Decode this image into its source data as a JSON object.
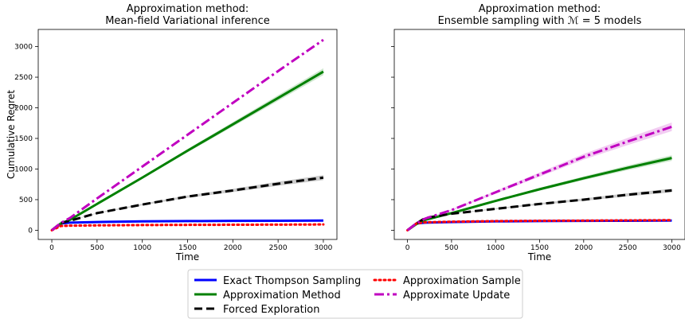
{
  "chart_data": [
    {
      "type": "line",
      "title": "Approximation method:\nMean-field Variational inference",
      "xlabel": "Time",
      "ylabel": "Cumulative Regret",
      "xlim": [
        -150,
        3150
      ],
      "ylim": [
        -150,
        3280
      ],
      "xticks": [
        0,
        500,
        1000,
        1500,
        2000,
        2500,
        3000
      ],
      "yticks": [
        0,
        500,
        1000,
        1500,
        2000,
        2500,
        3000
      ],
      "grid": false,
      "series": [
        {
          "name": "Exact Thompson Sampling",
          "color": "#0000ff",
          "style": "solid",
          "x": [
            0,
            100,
            200,
            500,
            1000,
            1500,
            2000,
            2500,
            3000
          ],
          "y": [
            0,
            110,
            125,
            135,
            145,
            150,
            153,
            156,
            158
          ]
        },
        {
          "name": "Approximation Method",
          "color": "#008000",
          "style": "solid",
          "x": [
            0,
            100,
            200,
            500,
            1000,
            1500,
            2000,
            2500,
            3000
          ],
          "y": [
            0,
            110,
            170,
            430,
            860,
            1300,
            1730,
            2160,
            2590
          ],
          "band": 55
        },
        {
          "name": "Forced Exploration",
          "color": "#000000",
          "style": "dashed",
          "x": [
            0,
            100,
            200,
            500,
            1000,
            1500,
            2000,
            2500,
            3000
          ],
          "y": [
            0,
            120,
            155,
            280,
            420,
            550,
            650,
            760,
            860
          ],
          "band": 40
        },
        {
          "name": "Approximation Sample",
          "color": "#ff0000",
          "style": "dotted",
          "x": [
            0,
            100,
            200,
            500,
            1000,
            1500,
            2000,
            2500,
            3000
          ],
          "y": [
            0,
            70,
            75,
            80,
            85,
            88,
            90,
            92,
            95
          ]
        },
        {
          "name": "Approximate Update",
          "color": "#c000c0",
          "style": "dashdot",
          "x": [
            0,
            100,
            200,
            500,
            1000,
            1500,
            2000,
            2500,
            3000
          ],
          "y": [
            0,
            120,
            200,
            520,
            1040,
            1560,
            2080,
            2600,
            3110
          ]
        }
      ]
    },
    {
      "type": "line",
      "title": "Approximation method:\nEnsemble sampling with ℳ = 5 models",
      "xlabel": "Time",
      "ylabel": "",
      "xlim": [
        -150,
        3150
      ],
      "ylim": [
        -150,
        3280
      ],
      "xticks": [
        0,
        500,
        1000,
        1500,
        2000,
        2500,
        3000
      ],
      "yticks": [],
      "grid": false,
      "series": [
        {
          "name": "Exact Thompson Sampling",
          "color": "#0000ff",
          "style": "solid",
          "x": [
            0,
            100,
            200,
            500,
            1000,
            1500,
            2000,
            2500,
            3000
          ],
          "y": [
            0,
            110,
            125,
            135,
            145,
            150,
            153,
            156,
            158
          ]
        },
        {
          "name": "Approximation Method",
          "color": "#008000",
          "style": "solid",
          "x": [
            0,
            100,
            200,
            500,
            1000,
            1500,
            2000,
            2500,
            3000
          ],
          "y": [
            0,
            100,
            170,
            280,
            480,
            670,
            850,
            1020,
            1180
          ],
          "band": 45
        },
        {
          "name": "Forced Exploration",
          "color": "#000000",
          "style": "dashed",
          "x": [
            0,
            100,
            200,
            500,
            1000,
            1500,
            2000,
            2500,
            3000
          ],
          "y": [
            0,
            110,
            200,
            270,
            350,
            430,
            500,
            580,
            650
          ],
          "band": 30
        },
        {
          "name": "Approximation Sample",
          "color": "#ff0000",
          "style": "dotted",
          "x": [
            0,
            100,
            200,
            500,
            1000,
            1500,
            2000,
            2500,
            3000
          ],
          "y": [
            0,
            110,
            130,
            140,
            150,
            155,
            158,
            162,
            165
          ]
        },
        {
          "name": "Approximate Update",
          "color": "#c000c0",
          "style": "dashdot",
          "x": [
            0,
            100,
            200,
            500,
            1000,
            1500,
            2000,
            2500,
            3000
          ],
          "y": [
            0,
            110,
            190,
            330,
            620,
            910,
            1200,
            1450,
            1690
          ],
          "band": 70
        }
      ]
    }
  ],
  "legend": {
    "placement": "bottom-center",
    "entries": [
      {
        "label": "Exact Thompson Sampling",
        "color": "#0000ff",
        "style": "solid"
      },
      {
        "label": "Approximation Sample",
        "color": "#ff0000",
        "style": "dotted"
      },
      {
        "label": "Approximation Method",
        "color": "#008000",
        "style": "solid"
      },
      {
        "label": "Approximate Update",
        "color": "#c000c0",
        "style": "dashdot"
      },
      {
        "label": "Forced Exploration",
        "color": "#000000",
        "style": "dashed"
      }
    ]
  }
}
